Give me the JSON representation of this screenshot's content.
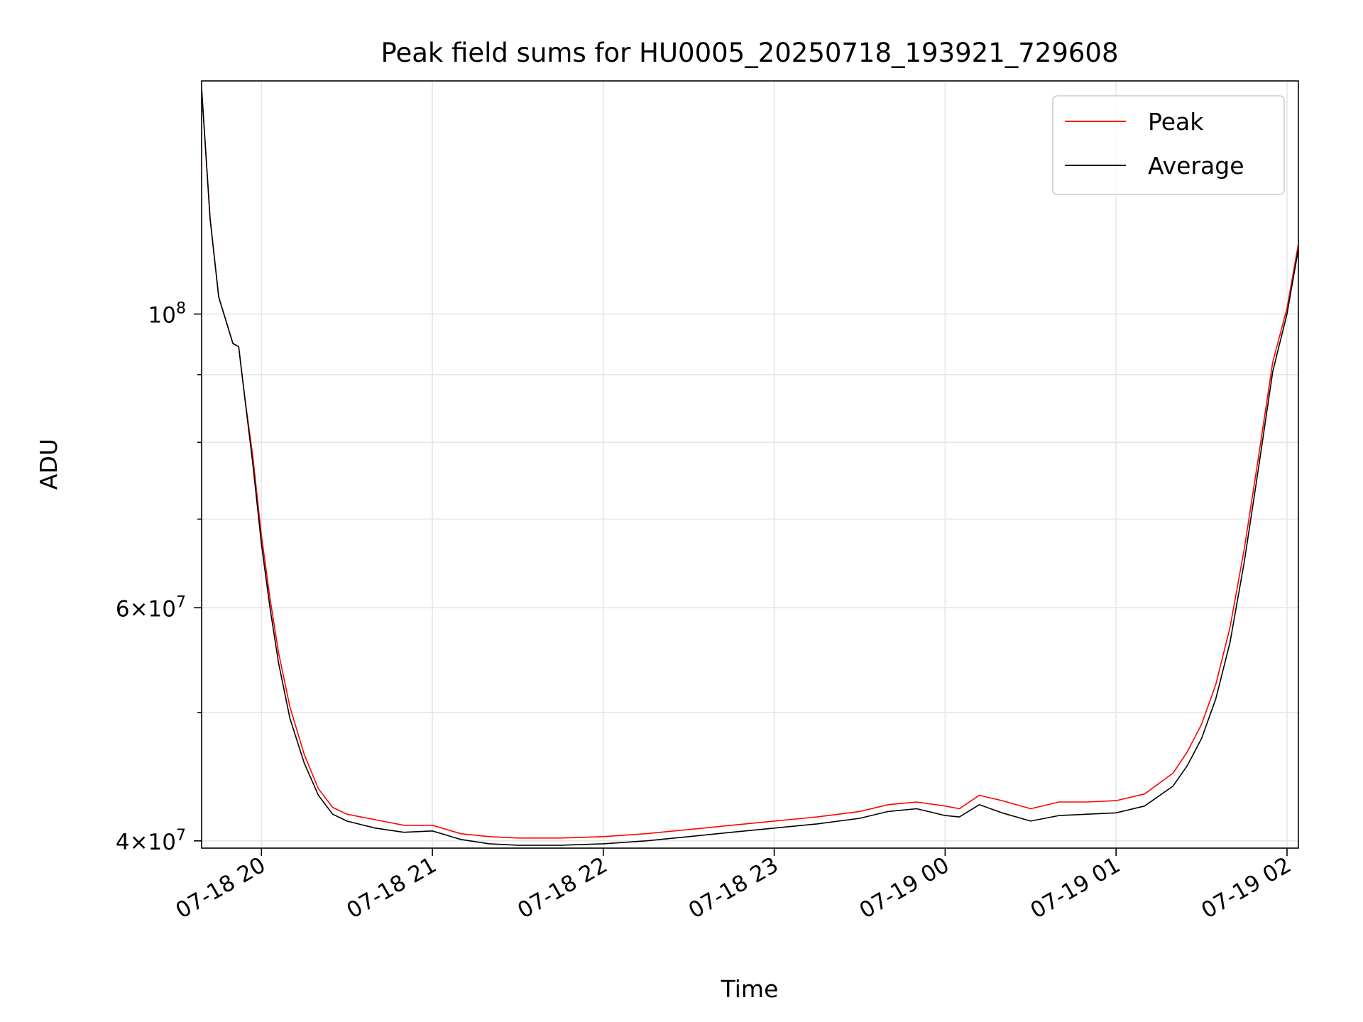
{
  "chart_data": {
    "type": "line",
    "title": "Peak field sums for HU0005_20250718_193921_729608",
    "xlabel": "Time",
    "ylabel": "ADU",
    "y_scale": "log",
    "xlim": [
      "2025-07-18 19:39",
      "2025-07-19 02:04"
    ],
    "ylim": [
      39500000,
      150000000
    ],
    "grid": true,
    "legend_position": "top-right",
    "x_ticks": [
      {
        "value": "2025-07-18 20:00",
        "label": "07-18 20"
      },
      {
        "value": "2025-07-18 21:00",
        "label": "07-18 21"
      },
      {
        "value": "2025-07-18 22:00",
        "label": "07-18 22"
      },
      {
        "value": "2025-07-18 23:00",
        "label": "07-18 23"
      },
      {
        "value": "2025-07-19 00:00",
        "label": "07-19 00"
      },
      {
        "value": "2025-07-19 01:00",
        "label": "07-19 01"
      },
      {
        "value": "2025-07-19 02:00",
        "label": "07-19 02"
      }
    ],
    "y_major_ticks": [
      {
        "value": 40000000,
        "mantissa": "4",
        "exponent": "7"
      },
      {
        "value": 60000000,
        "mantissa": "6",
        "exponent": "7"
      },
      {
        "value": 100000000,
        "mantissa": "",
        "exponent": "8"
      }
    ],
    "y_minor_ticks": [
      50000000,
      70000000,
      80000000,
      90000000
    ],
    "series": [
      {
        "name": "Peak",
        "color": "#ff0000",
        "points": [
          [
            "2025-07-18 19:39",
            148000000
          ],
          [
            "2025-07-18 19:42",
            118000000
          ],
          [
            "2025-07-18 19:45",
            103000000
          ],
          [
            "2025-07-18 19:50",
            95000000
          ],
          [
            "2025-07-18 19:52",
            94500000
          ],
          [
            "2025-07-18 19:54",
            87000000
          ],
          [
            "2025-07-18 19:57",
            78000000
          ],
          [
            "2025-07-18 20:00",
            68000000
          ],
          [
            "2025-07-18 20:03",
            61000000
          ],
          [
            "2025-07-18 20:06",
            55500000
          ],
          [
            "2025-07-18 20:10",
            50500000
          ],
          [
            "2025-07-18 20:15",
            46500000
          ],
          [
            "2025-07-18 20:20",
            43800000
          ],
          [
            "2025-07-18 20:25",
            42400000
          ],
          [
            "2025-07-18 20:30",
            41900000
          ],
          [
            "2025-07-18 20:40",
            41500000
          ],
          [
            "2025-07-18 20:50",
            41100000
          ],
          [
            "2025-07-18 21:00",
            41100000
          ],
          [
            "2025-07-18 21:10",
            40500000
          ],
          [
            "2025-07-18 21:20",
            40300000
          ],
          [
            "2025-07-18 21:30",
            40200000
          ],
          [
            "2025-07-18 21:45",
            40200000
          ],
          [
            "2025-07-18 22:00",
            40300000
          ],
          [
            "2025-07-18 22:15",
            40500000
          ],
          [
            "2025-07-18 22:30",
            40800000
          ],
          [
            "2025-07-18 22:45",
            41100000
          ],
          [
            "2025-07-18 23:00",
            41400000
          ],
          [
            "2025-07-18 23:15",
            41700000
          ],
          [
            "2025-07-18 23:30",
            42100000
          ],
          [
            "2025-07-18 23:40",
            42600000
          ],
          [
            "2025-07-18 23:50",
            42800000
          ],
          [
            "2025-07-19 00:00",
            42500000
          ],
          [
            "2025-07-19 00:05",
            42300000
          ],
          [
            "2025-07-19 00:12",
            43300000
          ],
          [
            "2025-07-19 00:20",
            42900000
          ],
          [
            "2025-07-19 00:30",
            42300000
          ],
          [
            "2025-07-19 00:40",
            42800000
          ],
          [
            "2025-07-19 00:50",
            42800000
          ],
          [
            "2025-07-19 01:00",
            42900000
          ],
          [
            "2025-07-19 01:10",
            43400000
          ],
          [
            "2025-07-19 01:20",
            45000000
          ],
          [
            "2025-07-19 01:25",
            46700000
          ],
          [
            "2025-07-19 01:30",
            49000000
          ],
          [
            "2025-07-19 01:35",
            52500000
          ],
          [
            "2025-07-19 01:40",
            58000000
          ],
          [
            "2025-07-19 01:45",
            66500000
          ],
          [
            "2025-07-19 01:50",
            78000000
          ],
          [
            "2025-07-19 01:55",
            92000000
          ],
          [
            "2025-07-19 02:00",
            101000000
          ],
          [
            "2025-07-19 02:04",
            113000000
          ]
        ]
      },
      {
        "name": "Average",
        "color": "#000000",
        "points": [
          [
            "2025-07-18 19:39",
            148000000
          ],
          [
            "2025-07-18 19:42",
            118000000
          ],
          [
            "2025-07-18 19:45",
            103000000
          ],
          [
            "2025-07-18 19:50",
            95000000
          ],
          [
            "2025-07-18 19:52",
            94500000
          ],
          [
            "2025-07-18 19:54",
            87000000
          ],
          [
            "2025-07-18 19:57",
            77000000
          ],
          [
            "2025-07-18 20:00",
            67000000
          ],
          [
            "2025-07-18 20:03",
            60000000
          ],
          [
            "2025-07-18 20:06",
            54500000
          ],
          [
            "2025-07-18 20:10",
            49500000
          ],
          [
            "2025-07-18 20:15",
            45800000
          ],
          [
            "2025-07-18 20:20",
            43300000
          ],
          [
            "2025-07-18 20:25",
            41900000
          ],
          [
            "2025-07-18 20:30",
            41400000
          ],
          [
            "2025-07-18 20:40",
            40900000
          ],
          [
            "2025-07-18 20:50",
            40600000
          ],
          [
            "2025-07-18 21:00",
            40700000
          ],
          [
            "2025-07-18 21:10",
            40100000
          ],
          [
            "2025-07-18 21:20",
            39800000
          ],
          [
            "2025-07-18 21:30",
            39700000
          ],
          [
            "2025-07-18 21:45",
            39700000
          ],
          [
            "2025-07-18 22:00",
            39800000
          ],
          [
            "2025-07-18 22:15",
            40000000
          ],
          [
            "2025-07-18 22:30",
            40300000
          ],
          [
            "2025-07-18 22:45",
            40600000
          ],
          [
            "2025-07-18 23:00",
            40900000
          ],
          [
            "2025-07-18 23:15",
            41200000
          ],
          [
            "2025-07-18 23:30",
            41600000
          ],
          [
            "2025-07-18 23:40",
            42100000
          ],
          [
            "2025-07-18 23:50",
            42300000
          ],
          [
            "2025-07-19 00:00",
            41800000
          ],
          [
            "2025-07-19 00:05",
            41700000
          ],
          [
            "2025-07-19 00:12",
            42600000
          ],
          [
            "2025-07-19 00:20",
            42000000
          ],
          [
            "2025-07-19 00:30",
            41400000
          ],
          [
            "2025-07-19 00:40",
            41800000
          ],
          [
            "2025-07-19 00:50",
            41900000
          ],
          [
            "2025-07-19 01:00",
            42000000
          ],
          [
            "2025-07-19 01:10",
            42500000
          ],
          [
            "2025-07-19 01:20",
            44000000
          ],
          [
            "2025-07-19 01:25",
            45600000
          ],
          [
            "2025-07-19 01:30",
            47800000
          ],
          [
            "2025-07-19 01:35",
            51200000
          ],
          [
            "2025-07-19 01:40",
            56500000
          ],
          [
            "2025-07-19 01:45",
            65000000
          ],
          [
            "2025-07-19 01:50",
            76500000
          ],
          [
            "2025-07-19 01:55",
            90500000
          ],
          [
            "2025-07-19 02:00",
            100000000
          ],
          [
            "2025-07-19 02:04",
            112000000
          ]
        ]
      }
    ]
  }
}
